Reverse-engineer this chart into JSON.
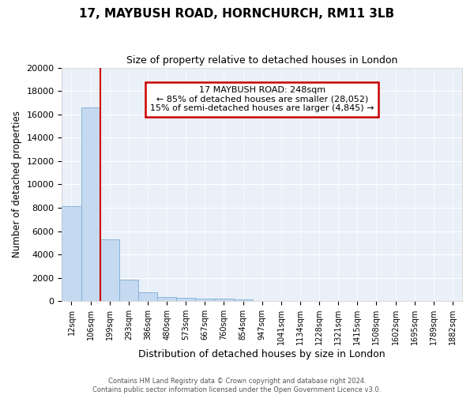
{
  "title": "17, MAYBUSH ROAD, HORNCHURCH, RM11 3LB",
  "subtitle": "Size of property relative to detached houses in London",
  "xlabel": "Distribution of detached houses by size in London",
  "ylabel": "Number of detached properties",
  "bar_color": "#c5d9f0",
  "bar_edge_color": "#7aaed6",
  "background_color": "#eaf0f8",
  "grid_color": "#ffffff",
  "categories": [
    "12sqm",
    "106sqm",
    "199sqm",
    "293sqm",
    "386sqm",
    "480sqm",
    "573sqm",
    "667sqm",
    "760sqm",
    "854sqm",
    "947sqm",
    "1041sqm",
    "1134sqm",
    "1228sqm",
    "1321sqm",
    "1415sqm",
    "1508sqm",
    "1602sqm",
    "1695sqm",
    "1789sqm",
    "1882sqm"
  ],
  "values": [
    8150,
    16600,
    5300,
    1850,
    780,
    350,
    270,
    230,
    210,
    180,
    0,
    0,
    0,
    0,
    0,
    0,
    0,
    0,
    0,
    0,
    0
  ],
  "ylim": [
    0,
    20000
  ],
  "yticks": [
    0,
    2000,
    4000,
    6000,
    8000,
    10000,
    12000,
    14000,
    16000,
    18000,
    20000
  ],
  "property_line_color": "#cc0000",
  "annotation_text": "17 MAYBUSH ROAD: 248sqm\n← 85% of detached houses are smaller (28,052)\n15% of semi-detached houses are larger (4,845) →",
  "annotation_box_color": "#ffffff",
  "annotation_box_edge_color": "#cc0000",
  "footer_line1": "Contains HM Land Registry data © Crown copyright and database right 2024.",
  "footer_line2": "Contains public sector information licensed under the Open Government Licence v3.0."
}
